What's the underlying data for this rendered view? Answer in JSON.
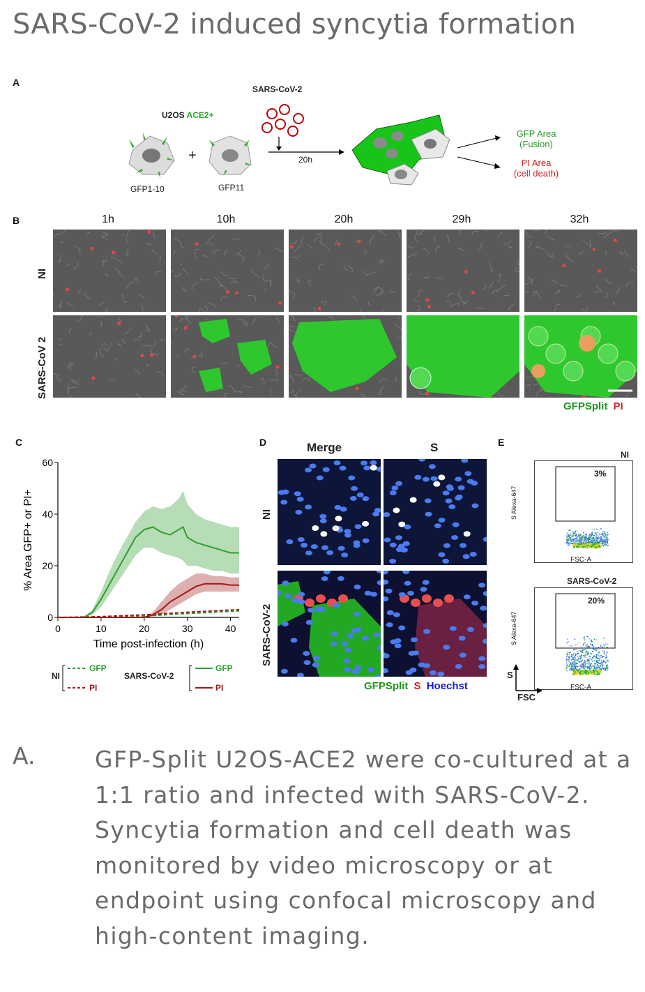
{
  "heading": "SARS-CoV-2 induced syncytia formation",
  "panelA": {
    "letter": "A",
    "cell_line": "U2OS",
    "ace2": "ACE2+",
    "virus": "SARS-CoV-2",
    "time": "20h",
    "left_cell": "GFP1-10",
    "right_cell": "GFP11",
    "plus": "+",
    "out1_line1": "GFP Area",
    "out1_line2": "(Fusion)",
    "out2_line1": "PI Area",
    "out2_line2": "(cell death)"
  },
  "panelB": {
    "letter": "B",
    "timepoints": [
      "1h",
      "10h",
      "20h",
      "29h",
      "32h"
    ],
    "row_ni": "NI",
    "row_sars": "SARS-CoV 2",
    "legend_gfp": "GFPSplit",
    "legend_pi": "PI"
  },
  "panelC": {
    "letter": "C",
    "legend": {
      "ni": "NI",
      "sars": "SARS-CoV-2",
      "gfp": "GFP",
      "pi": "PI"
    }
  },
  "chart_data": {
    "type": "line",
    "xlabel": "Time post-infection (h)",
    "ylabel": "% Area GFP+ or PI+",
    "xlim": [
      0,
      42
    ],
    "ylim": [
      0,
      60
    ],
    "xticks": [
      0,
      10,
      20,
      30,
      40
    ],
    "yticks": [
      0,
      20,
      40,
      60
    ],
    "series": [
      {
        "name": "NI GFP",
        "color": "#2e9e2e",
        "dashed": true,
        "x": [
          0,
          10,
          20,
          30,
          42
        ],
        "y": [
          0,
          0,
          0.5,
          1.5,
          2.5
        ]
      },
      {
        "name": "NI PI",
        "color": "#a01a1a",
        "dashed": true,
        "x": [
          0,
          10,
          20,
          30,
          42
        ],
        "y": [
          0,
          0.3,
          1,
          2,
          3
        ]
      },
      {
        "name": "SARS-CoV-2 GFP",
        "color": "#2e9e2e",
        "dashed": false,
        "x": [
          0,
          6,
          8,
          10,
          12,
          14,
          16,
          18,
          20,
          22,
          24,
          26,
          28,
          29,
          30,
          32,
          34,
          36,
          38,
          40,
          42
        ],
        "y": [
          0,
          0,
          2,
          7,
          13,
          19,
          25,
          31,
          34,
          35,
          33,
          32,
          34,
          35,
          31,
          29,
          28,
          27,
          26,
          25,
          25
        ],
        "lower": [
          0,
          0,
          1,
          4,
          9,
          14,
          19,
          24,
          27,
          27,
          25,
          24,
          23,
          22,
          20,
          20,
          19,
          18,
          18,
          17,
          17
        ],
        "upper": [
          0,
          0,
          3,
          10,
          18,
          25,
          31,
          37,
          41,
          43,
          42,
          43,
          46,
          49,
          44,
          40,
          38,
          37,
          36,
          35,
          35
        ]
      },
      {
        "name": "SARS-CoV-2 PI",
        "color": "#a01a1a",
        "dashed": false,
        "x": [
          0,
          20,
          22,
          24,
          26,
          28,
          30,
          32,
          34,
          36,
          38,
          40,
          42
        ],
        "y": [
          0,
          0,
          1,
          3,
          6,
          8,
          10,
          12,
          13,
          13,
          13,
          12.5,
          12.5
        ],
        "lower": [
          0,
          0,
          0.5,
          1,
          3,
          5,
          7,
          9,
          10,
          10,
          10,
          10,
          10
        ],
        "upper": [
          0,
          0,
          2,
          6,
          10,
          13,
          15,
          17,
          17,
          16,
          16,
          15.5,
          15.5
        ]
      }
    ]
  },
  "panelD": {
    "letter": "D",
    "col_merge": "Merge",
    "col_s": "S",
    "row_ni": "NI",
    "row_sars": "SARS-CoV-2",
    "legend_gfp": "GFPSplit",
    "legend_s": "S",
    "legend_hoechst": "Hoechst"
  },
  "panelE": {
    "letter": "E",
    "top_label": "NI",
    "top_pct": "3%",
    "bottom_label": "SARS-CoV-2",
    "bottom_pct": "20%",
    "xaxis": "FSC-A",
    "yaxis": "S Alexa-647",
    "arrow_s": "S",
    "arrow_fsc": "FSC"
  },
  "caption": {
    "letter": "A.",
    "text": "GFP-Split U2OS-ACE2 were co-cultured at a 1:1 ratio and infected with SARS-CoV-2. Syncytia formation and cell death was monitored by video microscopy or at endpoint using confocal microscopy and high-content imaging."
  }
}
